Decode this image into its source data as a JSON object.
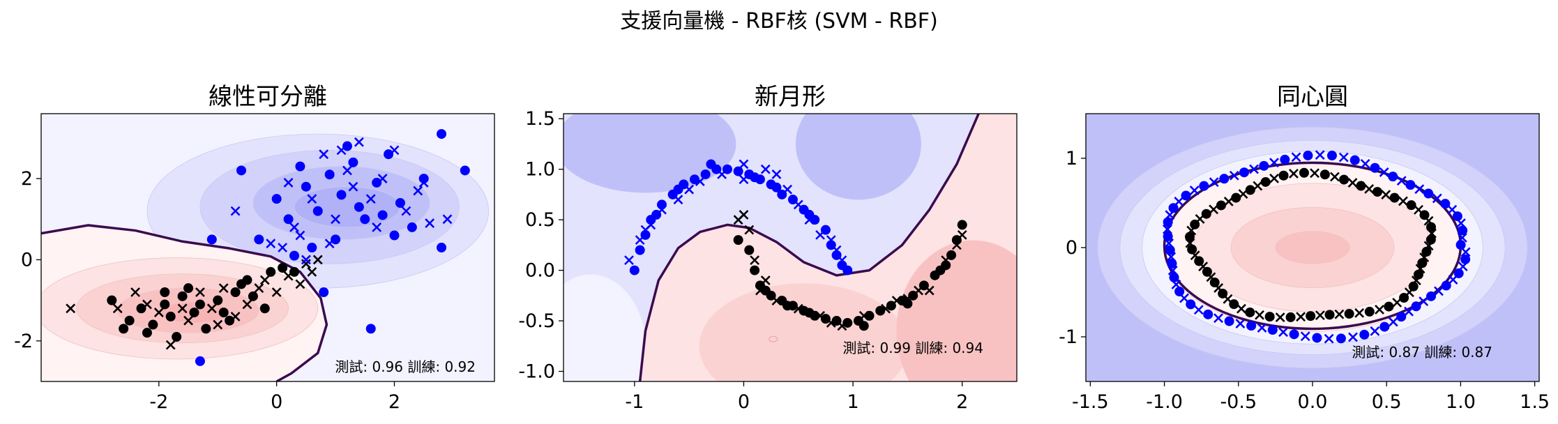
{
  "figure": {
    "suptitle": "支援向量機 - RBF核 (SVM - RBF)"
  },
  "colors": {
    "class0": "#000000",
    "class1": "#0000ff",
    "boundary": "#3b0a4f",
    "fill_blue": [
      "#f3f3ff",
      "#e3e3fd",
      "#d2d2fb",
      "#c0c0f9",
      "#b1b1f7"
    ],
    "fill_red": [
      "#fff3f3",
      "#fde3e3",
      "#fbd2d2",
      "#f9c2c2",
      "#f8b4b4"
    ]
  },
  "chart_data": [
    {
      "type": "scatter",
      "title": "線性可分離",
      "score_label": "測試: 0.96 訓練: 0.92",
      "xlim": [
        -4.0,
        3.7
      ],
      "ylim": [
        -3.0,
        3.6
      ],
      "xticks": [
        -2,
        0,
        2
      ],
      "yticks": [
        -2,
        0,
        2
      ],
      "series": [
        {
          "class": 0,
          "marker": "circle",
          "points": [
            [
              -2.8,
              -1.0
            ],
            [
              -2.5,
              -1.5
            ],
            [
              -2.3,
              -1.2
            ],
            [
              -2.1,
              -1.6
            ],
            [
              -1.9,
              -1.1
            ],
            [
              -1.8,
              -1.4
            ],
            [
              -1.6,
              -0.9
            ],
            [
              -1.4,
              -1.3
            ],
            [
              -1.2,
              -1.7
            ],
            [
              -1.0,
              -1.0
            ],
            [
              -0.9,
              -1.3
            ],
            [
              -0.7,
              -0.8
            ],
            [
              -0.6,
              -0.6
            ],
            [
              -0.4,
              -0.9
            ],
            [
              -0.2,
              -1.2
            ],
            [
              -0.1,
              -0.3
            ],
            [
              0.1,
              -0.2
            ],
            [
              -1.7,
              -1.9
            ],
            [
              -2.2,
              -1.8
            ],
            [
              -1.5,
              -0.7
            ],
            [
              -0.8,
              -1.5
            ],
            [
              -1.3,
              -1.1
            ],
            [
              -0.5,
              -0.5
            ],
            [
              -1.9,
              -0.8
            ],
            [
              -2.6,
              -1.7
            ],
            [
              0.3,
              -0.3
            ]
          ]
        },
        {
          "class": 0,
          "marker": "x",
          "points": [
            [
              -3.5,
              -1.2
            ],
            [
              -2.7,
              -1.2
            ],
            [
              -2.4,
              -0.8
            ],
            [
              -2.0,
              -1.3
            ],
            [
              -1.8,
              -2.1
            ],
            [
              -1.5,
              -1.5
            ],
            [
              -1.3,
              -0.8
            ],
            [
              -1.1,
              -1.2
            ],
            [
              -0.9,
              -0.7
            ],
            [
              -0.7,
              -1.4
            ],
            [
              -0.5,
              -1.1
            ],
            [
              -0.3,
              -0.7
            ],
            [
              0.0,
              -0.8
            ],
            [
              0.2,
              -0.4
            ],
            [
              0.5,
              -0.1
            ],
            [
              0.7,
              0.0
            ],
            [
              0.4,
              -0.6
            ],
            [
              -1.6,
              -1.2
            ],
            [
              -2.2,
              -1.1
            ],
            [
              -1.0,
              -1.6
            ],
            [
              -0.2,
              -0.5
            ],
            [
              0.6,
              -0.3
            ]
          ]
        },
        {
          "class": 1,
          "marker": "circle",
          "points": [
            [
              0.5,
              1.8
            ],
            [
              0.7,
              1.2
            ],
            [
              0.9,
              2.1
            ],
            [
              1.1,
              1.6
            ],
            [
              1.3,
              2.4
            ],
            [
              1.5,
              1.0
            ],
            [
              1.7,
              1.9
            ],
            [
              1.9,
              2.6
            ],
            [
              2.1,
              1.4
            ],
            [
              2.3,
              0.8
            ],
            [
              2.5,
              2.0
            ],
            [
              2.8,
              3.1
            ],
            [
              3.2,
              2.2
            ],
            [
              2.8,
              0.3
            ],
            [
              0.2,
              1.0
            ],
            [
              -0.3,
              0.5
            ],
            [
              0.0,
              1.5
            ],
            [
              0.4,
              2.3
            ],
            [
              1.0,
              0.5
            ],
            [
              1.2,
              2.8
            ],
            [
              0.8,
              -0.8
            ],
            [
              1.6,
              -1.7
            ],
            [
              -1.3,
              -2.5
            ],
            [
              -0.6,
              2.2
            ],
            [
              1.4,
              1.3
            ],
            [
              2.0,
              0.6
            ],
            [
              -1.1,
              0.5
            ],
            [
              0.6,
              0.3
            ],
            [
              1.8,
              1.1
            ],
            [
              0.3,
              0.1
            ]
          ]
        },
        {
          "class": 1,
          "marker": "x",
          "points": [
            [
              0.3,
              0.8
            ],
            [
              0.6,
              1.5
            ],
            [
              0.8,
              2.6
            ],
            [
              1.0,
              1.0
            ],
            [
              1.2,
              2.2
            ],
            [
              1.4,
              2.9
            ],
            [
              1.6,
              1.5
            ],
            [
              1.8,
              2.0
            ],
            [
              2.0,
              2.7
            ],
            [
              2.2,
              1.2
            ],
            [
              2.4,
              1.7
            ],
            [
              2.6,
              0.9
            ],
            [
              2.9,
              1.0
            ],
            [
              0.1,
              0.3
            ],
            [
              -0.1,
              0.4
            ],
            [
              0.5,
              0.0
            ],
            [
              0.9,
              0.4
            ],
            [
              1.1,
              2.7
            ],
            [
              1.7,
              0.8
            ],
            [
              -0.7,
              1.2
            ],
            [
              0.4,
              0.6
            ],
            [
              1.3,
              1.8
            ],
            [
              0.2,
              1.9
            ],
            [
              2.5,
              1.9
            ]
          ]
        }
      ]
    },
    {
      "type": "scatter",
      "title": "新月形",
      "score_label": "測試: 0.99 訓練: 0.94",
      "xlim": [
        -1.65,
        2.5
      ],
      "ylim": [
        -1.1,
        1.55
      ],
      "xticks": [
        -1,
        0,
        1,
        2
      ],
      "yticks": [
        -1.0,
        -0.5,
        0.0,
        0.5,
        1.0,
        1.5
      ],
      "series": [
        {
          "class": 0,
          "marker": "circle",
          "points": [
            [
              -0.05,
              0.3
            ],
            [
              0.05,
              0.2
            ],
            [
              0.1,
              0.0
            ],
            [
              0.15,
              -0.15
            ],
            [
              0.25,
              -0.25
            ],
            [
              0.35,
              -0.3
            ],
            [
              0.45,
              -0.35
            ],
            [
              0.55,
              -0.4
            ],
            [
              0.65,
              -0.45
            ],
            [
              0.75,
              -0.48
            ],
            [
              0.85,
              -0.5
            ],
            [
              0.95,
              -0.52
            ],
            [
              1.05,
              -0.5
            ],
            [
              1.15,
              -0.45
            ],
            [
              1.25,
              -0.4
            ],
            [
              1.35,
              -0.35
            ],
            [
              1.45,
              -0.3
            ],
            [
              1.55,
              -0.25
            ],
            [
              1.65,
              -0.15
            ],
            [
              1.75,
              -0.05
            ],
            [
              1.85,
              0.05
            ],
            [
              1.9,
              0.15
            ],
            [
              1.95,
              0.3
            ],
            [
              2.0,
              0.45
            ],
            [
              0.2,
              -0.2
            ],
            [
              0.6,
              -0.42
            ],
            [
              1.1,
              -0.55
            ],
            [
              1.5,
              -0.33
            ],
            [
              1.8,
              0.0
            ],
            [
              0.4,
              -0.35
            ]
          ]
        },
        {
          "class": 0,
          "marker": "x",
          "points": [
            [
              -0.05,
              0.5
            ],
            [
              0.05,
              0.4
            ],
            [
              0.1,
              0.1
            ],
            [
              0.15,
              -0.2
            ],
            [
              0.3,
              -0.3
            ],
            [
              0.5,
              -0.38
            ],
            [
              0.7,
              -0.45
            ],
            [
              0.9,
              -0.55
            ],
            [
              1.1,
              -0.45
            ],
            [
              1.3,
              -0.38
            ],
            [
              1.5,
              -0.28
            ],
            [
              1.7,
              -0.2
            ],
            [
              1.85,
              0.1
            ],
            [
              1.95,
              0.25
            ],
            [
              2.0,
              0.35
            ],
            [
              0.2,
              -0.1
            ],
            [
              0.8,
              -0.52
            ],
            [
              1.4,
              -0.3
            ],
            [
              1.6,
              -0.2
            ],
            [
              0.0,
              0.55
            ]
          ]
        },
        {
          "class": 1,
          "marker": "circle",
          "points": [
            [
              -1.0,
              0.0
            ],
            [
              -0.95,
              0.2
            ],
            [
              -0.9,
              0.35
            ],
            [
              -0.85,
              0.5
            ],
            [
              -0.75,
              0.65
            ],
            [
              -0.65,
              0.75
            ],
            [
              -0.55,
              0.85
            ],
            [
              -0.45,
              0.9
            ],
            [
              -0.35,
              0.95
            ],
            [
              -0.25,
              1.0
            ],
            [
              -0.15,
              1.0
            ],
            [
              -0.05,
              0.98
            ],
            [
              0.05,
              0.95
            ],
            [
              0.15,
              0.9
            ],
            [
              0.25,
              0.85
            ],
            [
              0.35,
              0.75
            ],
            [
              0.45,
              0.7
            ],
            [
              0.55,
              0.6
            ],
            [
              0.65,
              0.5
            ],
            [
              0.75,
              0.4
            ],
            [
              0.8,
              0.25
            ],
            [
              0.85,
              0.15
            ],
            [
              0.9,
              0.05
            ],
            [
              0.95,
              0.0
            ],
            [
              -0.8,
              0.55
            ],
            [
              -0.6,
              0.8
            ],
            [
              0.3,
              0.82
            ],
            [
              0.6,
              0.55
            ],
            [
              -0.3,
              1.05
            ],
            [
              0.1,
              0.92
            ]
          ]
        },
        {
          "class": 1,
          "marker": "x",
          "points": [
            [
              -1.05,
              0.1
            ],
            [
              -0.95,
              0.3
            ],
            [
              -0.85,
              0.45
            ],
            [
              -0.75,
              0.6
            ],
            [
              -0.6,
              0.7
            ],
            [
              -0.5,
              0.8
            ],
            [
              -0.4,
              0.88
            ],
            [
              -0.2,
              0.95
            ],
            [
              0.0,
              1.05
            ],
            [
              0.2,
              1.0
            ],
            [
              0.3,
              0.95
            ],
            [
              0.4,
              0.8
            ],
            [
              0.5,
              0.65
            ],
            [
              0.6,
              0.5
            ],
            [
              0.7,
              0.35
            ],
            [
              0.8,
              0.3
            ],
            [
              0.85,
              0.2
            ],
            [
              0.9,
              0.1
            ],
            [
              -0.9,
              0.4
            ],
            [
              0.0,
              0.9
            ]
          ]
        }
      ]
    },
    {
      "type": "scatter",
      "title": "同心圓",
      "score_label": "測試: 0.87 訓練: 0.87",
      "xlim": [
        -1.53,
        1.53
      ],
      "ylim": [
        -1.5,
        1.5
      ],
      "xticks": [
        -1.5,
        -1.0,
        -0.5,
        0.0,
        0.5,
        1.0,
        1.5
      ],
      "yticks": [
        -1,
        0,
        1
      ],
      "rings": {
        "inner_radius": 0.8,
        "outer_radius": 1.0
      }
    }
  ]
}
